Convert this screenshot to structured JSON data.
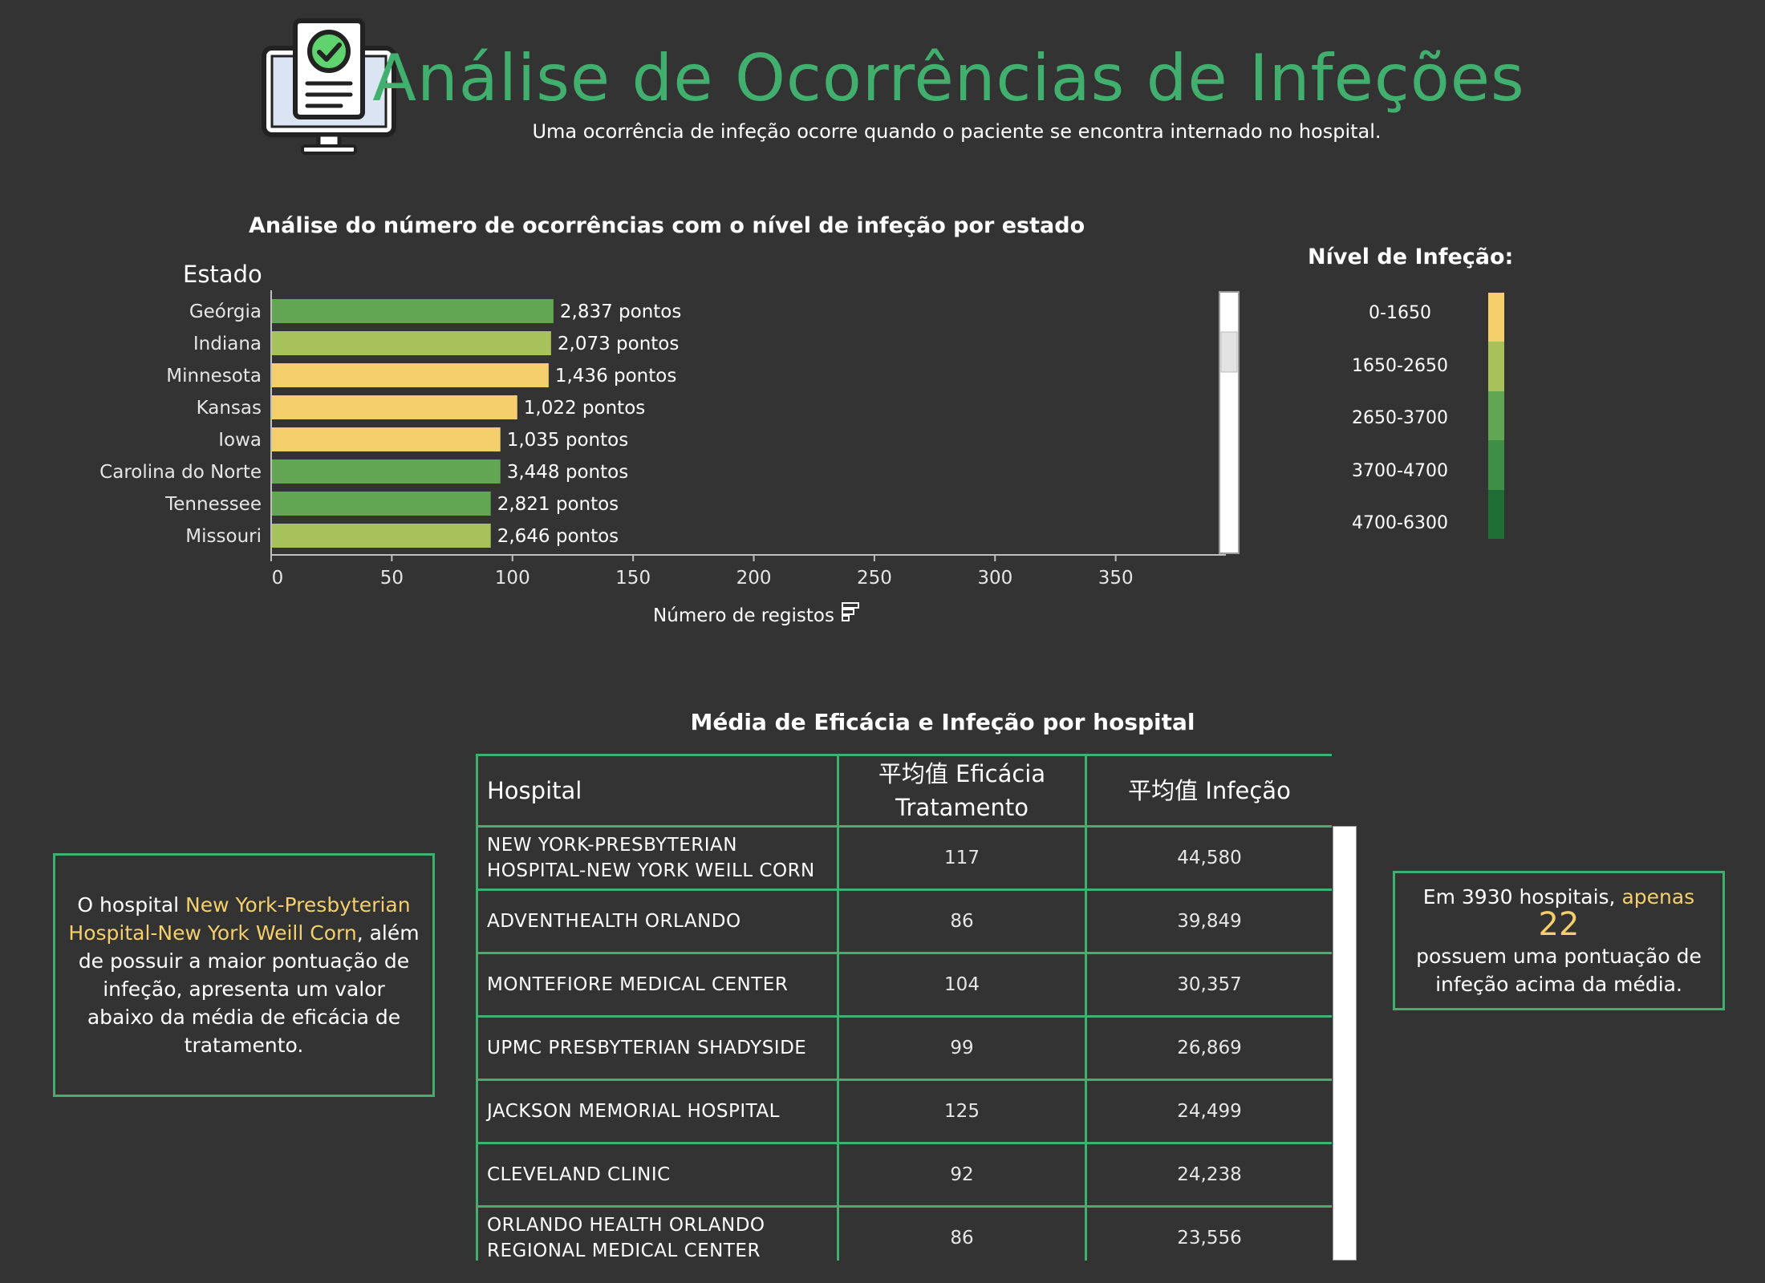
{
  "header": {
    "title": "Análise de Ocorrências de Infeções",
    "subtitle": "Uma ocorrência de infeção ocorre quando o paciente se encontra internado no hospital."
  },
  "chart": {
    "title": "Análise do número  de ocorrências com o nível de infeção por estado",
    "legend_title": "Nível de Infeção:",
    "legend_items": [
      {
        "label": "0-1650",
        "color": "#f4cf6b"
      },
      {
        "label": "1650-2650",
        "color": "#a8c25b"
      },
      {
        "label": "2650-3700",
        "color": "#62a552"
      },
      {
        "label": "3700-4700",
        "color": "#3f8e45"
      },
      {
        "label": "4700-6300",
        "color": "#1f6e35"
      }
    ]
  },
  "chart_data": {
    "type": "bar",
    "orientation": "horizontal",
    "xlabel": "Número de registos",
    "ylabel": "Estado",
    "xlim": [
      0,
      395
    ],
    "xticks": [
      0,
      50,
      100,
      150,
      200,
      250,
      300,
      350
    ],
    "categories": [
      "Geórgia",
      "Indiana",
      "Minnesota",
      "Kansas",
      "Iowa",
      "Carolina do Norte",
      "Tennessee",
      "Missouri"
    ],
    "values": [
      117,
      116,
      115,
      102,
      95,
      95,
      91,
      91
    ],
    "data_labels": [
      "2,837 pontos",
      "2,073 pontos",
      "1,436 pontos",
      "1,022 pontos",
      "1,035 pontos",
      "3,448 pontos",
      "2,821 pontos",
      "2,646 pontos"
    ],
    "infection_points": [
      2837,
      2073,
      1436,
      1022,
      1035,
      3448,
      2821,
      2646
    ],
    "bar_colors": [
      "#62a552",
      "#a8c25b",
      "#f4cf6b",
      "#f4cf6b",
      "#f4cf6b",
      "#62a552",
      "#62a552",
      "#a8c25b"
    ],
    "grid": false,
    "legend_position": "right"
  },
  "table": {
    "title": "Média de Eficácia e Infeção por hospital",
    "headers": {
      "hospital": "Hospital",
      "efficacy_line1": "平均值 Eficácia",
      "efficacy_line2": "Tratamento",
      "infection": "平均值 Infeção"
    },
    "rows": [
      {
        "name_line1": "NEW YORK-PRESBYTERIAN",
        "name_line2": "HOSPITAL-NEW YORK WEILL CORN",
        "efficacy": "117",
        "infection": "44,580"
      },
      {
        "name_line1": "ADVENTHEALTH ORLANDO",
        "name_line2": "",
        "efficacy": "86",
        "infection": "39,849"
      },
      {
        "name_line1": "MONTEFIORE MEDICAL CENTER",
        "name_line2": "",
        "efficacy": "104",
        "infection": "30,357"
      },
      {
        "name_line1": "UPMC PRESBYTERIAN SHADYSIDE",
        "name_line2": "",
        "efficacy": "99",
        "infection": "26,869"
      },
      {
        "name_line1": "JACKSON MEMORIAL HOSPITAL",
        "name_line2": "",
        "efficacy": "125",
        "infection": "24,499"
      },
      {
        "name_line1": "CLEVELAND CLINIC",
        "name_line2": "",
        "efficacy": "92",
        "infection": "24,238"
      },
      {
        "name_line1": "ORLANDO HEALTH ORLANDO",
        "name_line2": "REGIONAL MEDICAL CENTER",
        "efficacy": "86",
        "infection": "23,556"
      }
    ]
  },
  "callout_left": {
    "prefix": "O hospital ",
    "highlight": "New York-Presbyterian Hospital-New York Weill Corn",
    "suffix": ", além de possuir a maior pontuação de infeção, apresenta um valor abaixo da média de eficácia de tratamento."
  },
  "callout_right": {
    "prefix": "Em 3930 hospitais, ",
    "highlight": "apenas",
    "number": "22",
    "suffix": "possuem uma pontuação de infeção acima da média."
  },
  "colors": {
    "background": "#333333",
    "accent": "#41b06e",
    "highlight": "#f4cf6b"
  }
}
